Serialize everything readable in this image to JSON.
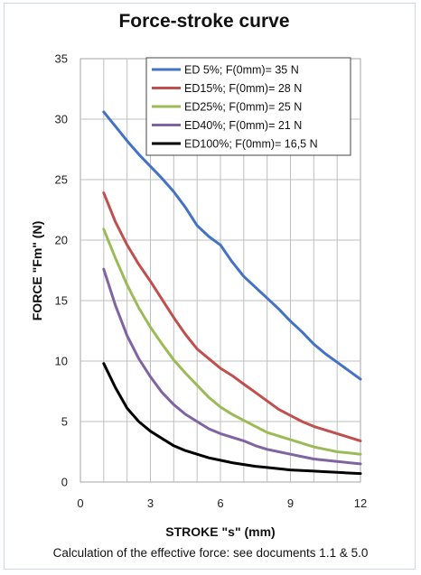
{
  "chart_data": {
    "type": "line",
    "title": "Force-stroke curve",
    "xlabel": "STROKE \"s\" (mm)",
    "ylabel": "FORCE \"Fm\" (N)",
    "xlim": [
      0,
      12
    ],
    "ylim": [
      0,
      35
    ],
    "xticks": [
      0,
      3,
      6,
      9,
      12
    ],
    "yticks": [
      0,
      5,
      10,
      15,
      20,
      25,
      30,
      35
    ],
    "grid": true,
    "legend_position": "top-right",
    "series": [
      {
        "name": "ED 5%; F(0mm)= 35 N",
        "color": "#4472C4",
        "x": [
          1,
          1.5,
          2,
          2.5,
          3,
          3.5,
          4,
          4.5,
          5,
          5.5,
          6,
          6.5,
          7,
          7.5,
          8,
          8.5,
          9,
          9.5,
          10,
          10.5,
          11,
          11.5,
          12
        ],
        "y": [
          30.6,
          29.4,
          28.2,
          27.1,
          26.1,
          25.1,
          24.0,
          22.7,
          21.2,
          20.3,
          19.6,
          18.2,
          17.0,
          16.1,
          15.2,
          14.3,
          13.3,
          12.4,
          11.4,
          10.6,
          9.9,
          9.2,
          8.5
        ]
      },
      {
        "name": "ED15%; F(0mm)= 28 N",
        "color": "#C0504D",
        "x": [
          1,
          1.5,
          2,
          2.5,
          3,
          3.5,
          4,
          4.5,
          5,
          5.5,
          6,
          6.5,
          7,
          7.5,
          8,
          8.5,
          9,
          9.5,
          10,
          10.5,
          11,
          11.5,
          12
        ],
        "y": [
          23.9,
          21.5,
          19.6,
          18.0,
          16.6,
          15.1,
          13.6,
          12.2,
          11.0,
          10.2,
          9.4,
          8.8,
          8.1,
          7.4,
          6.7,
          6.0,
          5.5,
          5.0,
          4.6,
          4.3,
          4.0,
          3.7,
          3.4
        ]
      },
      {
        "name": "ED25%; F(0mm)= 25 N",
        "color": "#9BBB59",
        "x": [
          1,
          1.5,
          2,
          2.5,
          3,
          3.5,
          4,
          4.5,
          5,
          5.5,
          6,
          6.5,
          7,
          7.5,
          8,
          8.5,
          9,
          9.5,
          10,
          10.5,
          11,
          11.5,
          12
        ],
        "y": [
          20.9,
          18.5,
          16.3,
          14.4,
          12.8,
          11.4,
          10.1,
          9.0,
          8.0,
          7.0,
          6.2,
          5.6,
          5.1,
          4.6,
          4.1,
          3.8,
          3.5,
          3.2,
          2.9,
          2.7,
          2.5,
          2.4,
          2.3
        ]
      },
      {
        "name": "ED40%; F(0mm)= 21 N",
        "color": "#8064A2",
        "x": [
          1,
          1.5,
          2,
          2.5,
          3,
          3.5,
          4,
          4.5,
          5,
          5.5,
          6,
          6.5,
          7,
          7.5,
          8,
          8.5,
          9,
          9.5,
          10,
          10.5,
          11,
          11.5,
          12
        ],
        "y": [
          17.6,
          14.6,
          12.1,
          10.2,
          8.7,
          7.4,
          6.4,
          5.6,
          5.0,
          4.4,
          4.0,
          3.7,
          3.4,
          3.0,
          2.7,
          2.5,
          2.3,
          2.1,
          1.9,
          1.8,
          1.7,
          1.6,
          1.5
        ]
      },
      {
        "name": "ED100%; F(0mm)= 16,5 N",
        "color": "#000000",
        "x": [
          1,
          1.5,
          2,
          2.5,
          3,
          3.5,
          4,
          4.5,
          5,
          5.5,
          6,
          6.5,
          7,
          7.5,
          8,
          8.5,
          9,
          9.5,
          10,
          10.5,
          11,
          11.5,
          12
        ],
        "y": [
          9.8,
          7.8,
          6.1,
          5.0,
          4.2,
          3.6,
          3.0,
          2.6,
          2.3,
          2.0,
          1.8,
          1.6,
          1.45,
          1.3,
          1.2,
          1.1,
          1.0,
          0.95,
          0.9,
          0.85,
          0.8,
          0.75,
          0.7
        ]
      }
    ]
  },
  "caption": "Calculation of the effective force: see documents 1.1 & 5.0"
}
